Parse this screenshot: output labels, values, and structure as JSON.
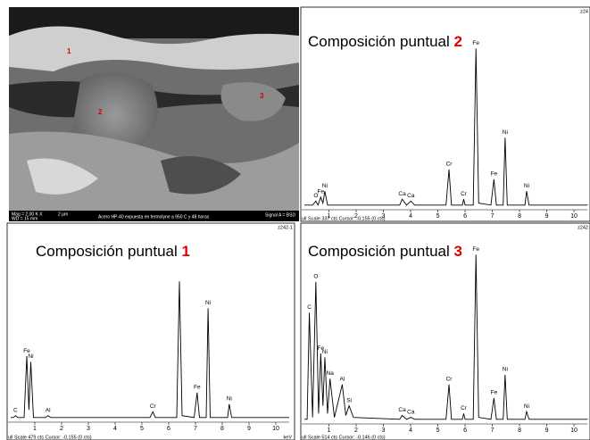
{
  "image": {
    "caption": "Acero HP-40 expuesta en termolyne a 950 C y 48 horas",
    "magnification": "Mag = 2.00 K X",
    "working_distance": "WD = 15 mm",
    "scale": "2 µm",
    "signal": "Signal A = BSD",
    "points": [
      "1",
      "2",
      "3"
    ]
  },
  "chart_data": [
    {
      "type": "line",
      "title": "Composición puntual",
      "point": "2",
      "code": "z24",
      "footer": "ull Scale 337 cts Cursor: -0.155 (0 cts)",
      "color": "#000000",
      "xlim": [
        0,
        10.5
      ],
      "xticks": [
        1,
        2,
        3,
        4,
        5,
        6,
        7,
        8,
        9,
        10
      ],
      "ylim": [
        0,
        100
      ],
      "x": [
        0.1,
        0.4,
        0.52,
        0.6,
        0.7,
        0.78,
        0.85,
        0.95,
        1.3,
        3.6,
        3.69,
        3.85,
        4.01,
        4.15,
        5.3,
        5.41,
        5.5,
        5.9,
        5.95,
        6.0,
        6.3,
        6.4,
        6.5,
        6.95,
        7.06,
        7.15,
        7.4,
        7.47,
        7.55,
        8.2,
        8.26,
        8.35,
        10.5
      ],
      "values": [
        1,
        1,
        3,
        1,
        5,
        2,
        8,
        1,
        1,
        1,
        4,
        1,
        3,
        1,
        1,
        19,
        1,
        1,
        4,
        1,
        1,
        80,
        2,
        1,
        14,
        1,
        1,
        35,
        1,
        1,
        8,
        1,
        1
      ],
      "peak_labels": [
        null,
        null,
        "O",
        null,
        "Fe",
        null,
        "Ni",
        null,
        null,
        null,
        "Ca",
        null,
        "Ca",
        null,
        null,
        "Cr",
        null,
        null,
        "Cr",
        null,
        null,
        "Fe",
        null,
        null,
        "Fe",
        null,
        null,
        "Ni",
        null,
        null,
        "Ni",
        null,
        null
      ]
    },
    {
      "type": "line",
      "title": "Composición puntual",
      "point": "1",
      "code": "z242-1",
      "footer": "ull Scale 479 cts Cursor: -0.155 (0 cts)",
      "x_label": "keV",
      "color": "#000000",
      "xlim": [
        0,
        10.5
      ],
      "xticks": [
        1,
        2,
        3,
        4,
        5,
        6,
        7,
        8,
        9,
        10
      ],
      "ylim": [
        0,
        100
      ],
      "x": [
        0.1,
        0.2,
        0.28,
        0.36,
        0.6,
        0.7,
        0.78,
        0.85,
        0.95,
        1.4,
        1.49,
        1.6,
        5.3,
        5.41,
        5.5,
        5.9,
        6.3,
        6.4,
        6.5,
        6.95,
        7.06,
        7.15,
        7.4,
        7.47,
        7.55,
        8.2,
        8.26,
        8.35,
        10.5
      ],
      "values": [
        1,
        1,
        2,
        1,
        1,
        33,
        5,
        30,
        1,
        1,
        2,
        1,
        1,
        4,
        1,
        1,
        1,
        72,
        2,
        1,
        14,
        1,
        1,
        58,
        1,
        1,
        8,
        1,
        1
      ],
      "peak_labels": [
        null,
        null,
        "C",
        null,
        null,
        "Fe",
        null,
        "Ni",
        null,
        null,
        "Al",
        null,
        null,
        "Cr",
        null,
        null,
        null,
        null,
        null,
        null,
        "Fe",
        null,
        null,
        "Ni",
        null,
        null,
        "Ni",
        null,
        null
      ]
    },
    {
      "type": "line",
      "title": "Composición puntual",
      "point": "3",
      "code": "z242",
      "footer": "ull Scale 514 cts Cursor: -0.146 (0 cts)",
      "color": "#000000",
      "xlim": [
        0,
        10.5
      ],
      "xticks": [
        1,
        2,
        3,
        4,
        5,
        6,
        7,
        8,
        9,
        10
      ],
      "ylim": [
        0,
        100
      ],
      "x": [
        0.1,
        0.2,
        0.28,
        0.4,
        0.52,
        0.62,
        0.7,
        0.78,
        0.85,
        0.95,
        1.04,
        1.2,
        1.49,
        1.62,
        1.74,
        1.9,
        3.6,
        3.69,
        3.85,
        4.01,
        4.15,
        5.3,
        5.41,
        5.5,
        5.9,
        5.95,
        6.0,
        6.3,
        6.4,
        6.5,
        6.95,
        7.06,
        7.15,
        7.4,
        7.47,
        7.55,
        8.2,
        8.26,
        8.35,
        10.5
      ],
      "values": [
        1,
        1,
        56,
        2,
        72,
        4,
        35,
        8,
        33,
        4,
        22,
        2,
        19,
        3,
        8,
        2,
        1,
        3,
        1,
        2,
        1,
        1,
        19,
        1,
        1,
        4,
        1,
        1,
        86,
        2,
        1,
        12,
        1,
        1,
        24,
        1,
        1,
        5,
        1,
        1
      ],
      "peak_labels": [
        null,
        null,
        "C",
        null,
        "O",
        null,
        "Fe",
        null,
        "Ni",
        null,
        "Na",
        null,
        "Al",
        null,
        "Si",
        null,
        null,
        "Ca",
        null,
        "Ca",
        null,
        null,
        "Cr",
        null,
        null,
        "Cr",
        null,
        null,
        "Fe",
        null,
        null,
        "Fe",
        null,
        null,
        "Ni",
        null,
        null,
        "Ni",
        null,
        null
      ]
    }
  ]
}
